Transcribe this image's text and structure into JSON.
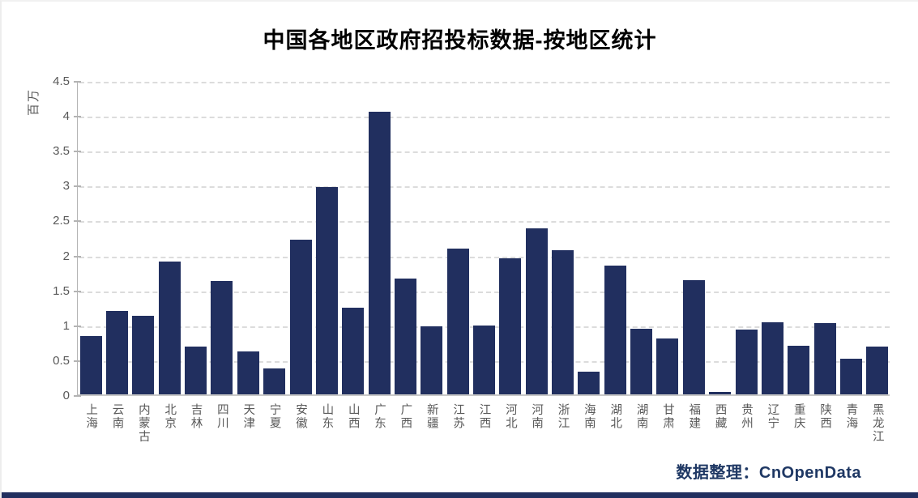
{
  "page": {
    "footer_credit": "数据整理：CnOpenData",
    "accent_color": "#1f3864",
    "background_color": "#ffffff"
  },
  "chart_data": {
    "type": "bar",
    "title": "中国各地区政府招投标数据-按地区统计",
    "unit_label": "百万",
    "xlabel": "",
    "ylabel": "百万",
    "categories": [
      "上海",
      "云南",
      "内蒙古",
      "北京",
      "吉林",
      "四川",
      "天津",
      "宁夏",
      "安徽",
      "山东",
      "山西",
      "广东",
      "广西",
      "新疆",
      "江苏",
      "江西",
      "河北",
      "河南",
      "浙江",
      "海南",
      "湖北",
      "湖南",
      "甘肃",
      "福建",
      "西藏",
      "贵州",
      "辽宁",
      "重庆",
      "陕西",
      "青海",
      "黑龙江"
    ],
    "values": [
      0.83,
      1.2,
      1.12,
      1.9,
      0.68,
      1.62,
      0.61,
      0.37,
      2.21,
      2.97,
      1.24,
      4.05,
      1.66,
      0.98,
      2.09,
      0.99,
      1.95,
      2.38,
      2.07,
      0.33,
      1.85,
      0.94,
      0.8,
      1.63,
      0.03,
      0.93,
      1.03,
      0.7,
      1.02,
      0.51,
      0.68
    ],
    "ylim": [
      0,
      4.5
    ],
    "yticks": [
      0,
      0.5,
      1,
      1.5,
      2,
      2.5,
      3,
      3.5,
      4,
      4.5
    ],
    "grid": "horizontal-dashed",
    "legend": "none",
    "bar_color": "#212f5f",
    "gridline_color": "#dcdcdc",
    "axis_color": "#b3b3b3",
    "tick_label_color": "#595959",
    "title_color": "#000000"
  }
}
